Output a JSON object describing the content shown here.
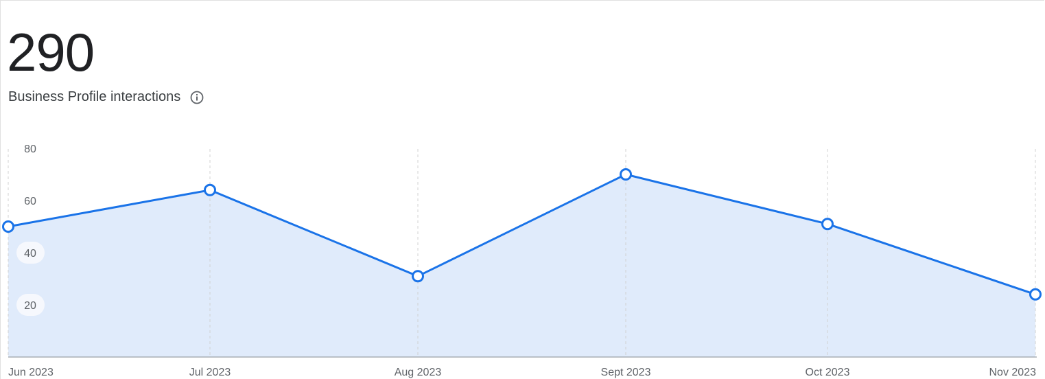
{
  "header": {
    "total": "290",
    "subtitle": "Business Profile interactions",
    "info_icon": "info-circle-icon"
  },
  "colors": {
    "line": "#1a73e8",
    "fill": "#e0ebfb",
    "grid": "#d0d0d0",
    "axis": "#9aa0a6",
    "text": "#5f6368"
  },
  "chart_data": {
    "type": "area",
    "categories": [
      "Jun 2023",
      "Jul 2023",
      "Aug 2023",
      "Sept 2023",
      "Oct 2023",
      "Nov 2023"
    ],
    "series": [
      {
        "values": [
          50,
          64,
          31,
          70,
          51,
          24
        ]
      }
    ],
    "yticks": [
      "20",
      "40",
      "60",
      "80"
    ],
    "ylim": [
      0,
      80
    ],
    "grid": "vertical dashed",
    "markers": "hollow circles"
  }
}
